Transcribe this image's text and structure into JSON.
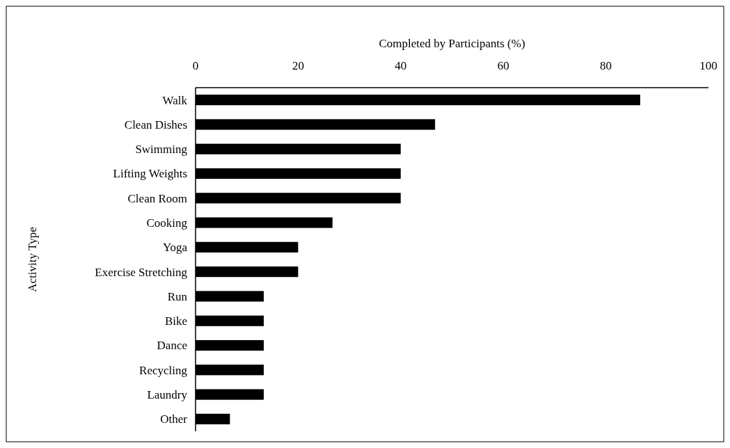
{
  "chart_data": {
    "type": "bar",
    "orientation": "horizontal",
    "xlabel": "Completed by Participants (%)",
    "ylabel": "Activity Type",
    "categories": [
      "Walk",
      "Clean Dishes",
      "Swimming",
      "Lifting Weights",
      "Clean Room",
      "Cooking",
      "Yoga",
      "Exercise Stretching",
      "Run",
      "Bike",
      "Dance",
      "Recycling",
      "Laundry",
      "Other"
    ],
    "values": [
      86.7,
      46.7,
      40,
      40,
      40,
      26.7,
      20,
      20,
      13.3,
      13.3,
      13.3,
      13.3,
      13.3,
      6.7
    ],
    "color": "#000000",
    "xlim": [
      0,
      100
    ],
    "xticks": [
      0,
      20,
      40,
      60,
      80,
      100
    ],
    "grid": false
  }
}
